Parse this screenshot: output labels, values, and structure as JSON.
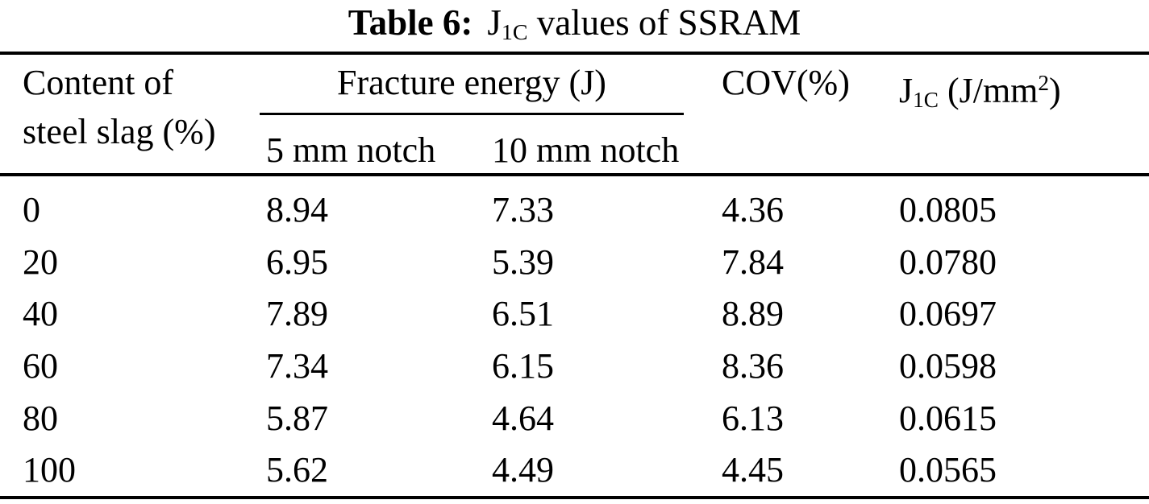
{
  "colors": {
    "text": "#000000",
    "background": "#ffffff"
  },
  "caption": {
    "label": "Table 6:",
    "j": "J",
    "j_sub": "1C",
    "rest": " values of SSRAM"
  },
  "header": {
    "col1_line1": "Content of",
    "col1_line2": "steel slag (%)",
    "group": "Fracture energy (J)",
    "sub5": "5 mm notch",
    "sub10": "10 mm notch",
    "cov": "COV(%)",
    "j1c": {
      "j": "J",
      "sub": "1C",
      "mid": " (J/mm",
      "sup": "2",
      "close": ")"
    }
  },
  "rows": [
    {
      "content": "0",
      "n5": "8.94",
      "n10": "7.33",
      "cov": "4.36",
      "j1c": "0.0805"
    },
    {
      "content": "20",
      "n5": "6.95",
      "n10": "5.39",
      "cov": "7.84",
      "j1c": "0.0780"
    },
    {
      "content": "40",
      "n5": "7.89",
      "n10": "6.51",
      "cov": "8.89",
      "j1c": "0.0697"
    },
    {
      "content": "60",
      "n5": "7.34",
      "n10": "6.15",
      "cov": "8.36",
      "j1c": "0.0598"
    },
    {
      "content": "80",
      "n5": "5.87",
      "n10": "4.64",
      "cov": "6.13",
      "j1c": "0.0615"
    },
    {
      "content": "100",
      "n5": "5.62",
      "n10": "4.49",
      "cov": "4.45",
      "j1c": "0.0565"
    }
  ],
  "chart_data": {
    "type": "table",
    "title": "Table 6: J1C values of SSRAM",
    "columns": [
      "Content of steel slag (%)",
      "Fracture energy (J) - 5 mm notch",
      "Fracture energy (J) - 10 mm notch",
      "COV(%)",
      "J1C (J/mm2)"
    ],
    "rows": [
      [
        0,
        8.94,
        7.33,
        4.36,
        0.0805
      ],
      [
        20,
        6.95,
        5.39,
        7.84,
        0.078
      ],
      [
        40,
        7.89,
        6.51,
        8.89,
        0.0697
      ],
      [
        60,
        7.34,
        6.15,
        8.36,
        0.0598
      ],
      [
        80,
        5.87,
        4.64,
        6.13,
        0.0615
      ],
      [
        100,
        5.62,
        4.49,
        4.45,
        0.0565
      ]
    ]
  }
}
